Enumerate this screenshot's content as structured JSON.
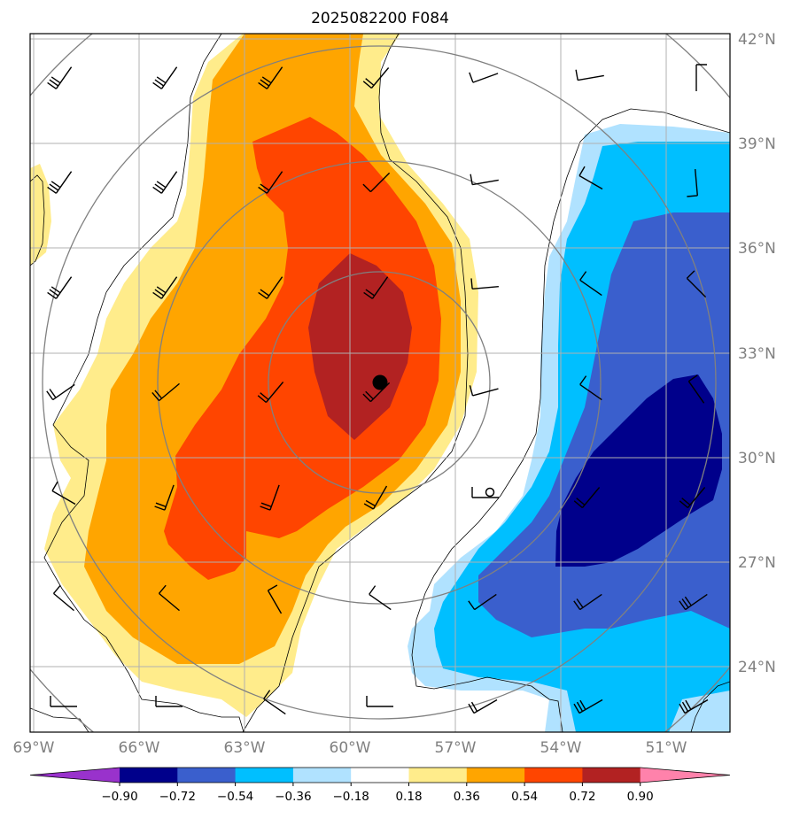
{
  "title": "2025082200 F084",
  "map": {
    "lon_labels": [
      "69°W",
      "66°W",
      "63°W",
      "60°W",
      "57°W",
      "54°W",
      "51°W"
    ],
    "lat_labels": [
      "42°N",
      "39°N",
      "36°N",
      "33°N",
      "30°N",
      "27°N",
      "24°N"
    ],
    "gridlines": true,
    "storm_center": {
      "lon": "59.4°W",
      "lat": "32.1°N"
    }
  },
  "colorbar": {
    "levels": [
      "−0.90",
      "−0.72",
      "−0.54",
      "−0.36",
      "−0.18",
      "0.18",
      "0.36",
      "0.54",
      "0.72",
      "0.90"
    ],
    "colors": {
      "below_min": "#9932cc",
      "c1": "#00008b",
      "c2": "#3a5fcd",
      "c3": "#00bfff",
      "c4": "#b0e2ff",
      "neutral": "#ffffff",
      "w1": "#ffec8b",
      "w2": "#ffa500",
      "w3": "#ff4500",
      "w4": "#b22222",
      "above_max": "#ff82ab"
    },
    "extend": "both"
  },
  "overlays": {
    "range_rings": "gray concentric circles around storm center",
    "contour_line_color": "#000000",
    "wind_barbs": true
  }
}
